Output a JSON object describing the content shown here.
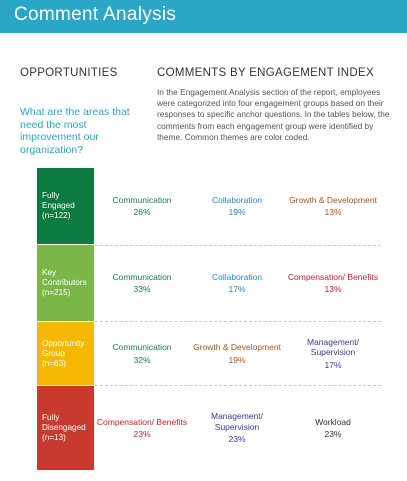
{
  "header": {
    "title": "Comment Analysis"
  },
  "left": {
    "heading": "OPPORTUNITIES",
    "question": "What are the areas that need the most improvement our organization?"
  },
  "right": {
    "heading": "COMMENTS BY ENGAGEMENT INDEX",
    "intro": "In the Engagement Analysis section of the report, employees were categorized into four engagement groups based on their responses to specific anchor questions. In the tables below, the comments from each engagement group were identified by theme. Common themes are color coded."
  },
  "colors": {
    "header": "#2aa7c7",
    "question": "#2aa7c7",
    "communication": "#1e7a4a",
    "collaboration": "#2a86c0",
    "growth_development": "#a05a1a",
    "compensation_benefits": "#c0272d",
    "management_supervision": "#3a3a8c",
    "workload": "#333333",
    "fully_engaged": "#0d7a3f",
    "key_contributors": "#7ab648",
    "opportunity_group": "#f5b800",
    "fully_disengaged": "#c8392f"
  },
  "groups": [
    {
      "name": "Fully Engaged",
      "n": "(n=122)",
      "color": "#0d7a3f",
      "cells": [
        {
          "theme": "Communication",
          "pct": "26%",
          "color": "#1e7a4a"
        },
        {
          "theme": "Collaboration",
          "pct": "19%",
          "color": "#2a86c0"
        },
        {
          "theme": "Growth & Development",
          "pct": "13%",
          "color": "#a05a1a"
        }
      ]
    },
    {
      "name": "Key Contributors",
      "n": "(n=215)",
      "color": "#7ab648",
      "cells": [
        {
          "theme": "Communication",
          "pct": "33%",
          "color": "#1e7a4a"
        },
        {
          "theme": "Collaboration",
          "pct": "17%",
          "color": "#2a86c0"
        },
        {
          "theme": "Compensation/ Benefits",
          "pct": "13%",
          "color": "#c0272d"
        }
      ]
    },
    {
      "name": "Opportunity Group",
      "n": "(n=63)",
      "color": "#f5b800",
      "cells": [
        {
          "theme": "Communication",
          "pct": "32%",
          "color": "#1e7a4a"
        },
        {
          "theme": "Growth & Development",
          "pct": "19%",
          "color": "#a05a1a"
        },
        {
          "theme": "Management/ Supervision",
          "pct": "17%",
          "color": "#3a3a8c"
        }
      ]
    },
    {
      "name": "Fully Disengaged",
      "n": "(n=13)",
      "color": "#c8392f",
      "cells": [
        {
          "theme": "Compensation/ Benefits",
          "pct": "23%",
          "color": "#c0272d"
        },
        {
          "theme": "Management/ Supervision",
          "pct": "23%",
          "color": "#3a3a8c"
        },
        {
          "theme": "Workload",
          "pct": "23%",
          "color": "#333333"
        }
      ]
    }
  ]
}
